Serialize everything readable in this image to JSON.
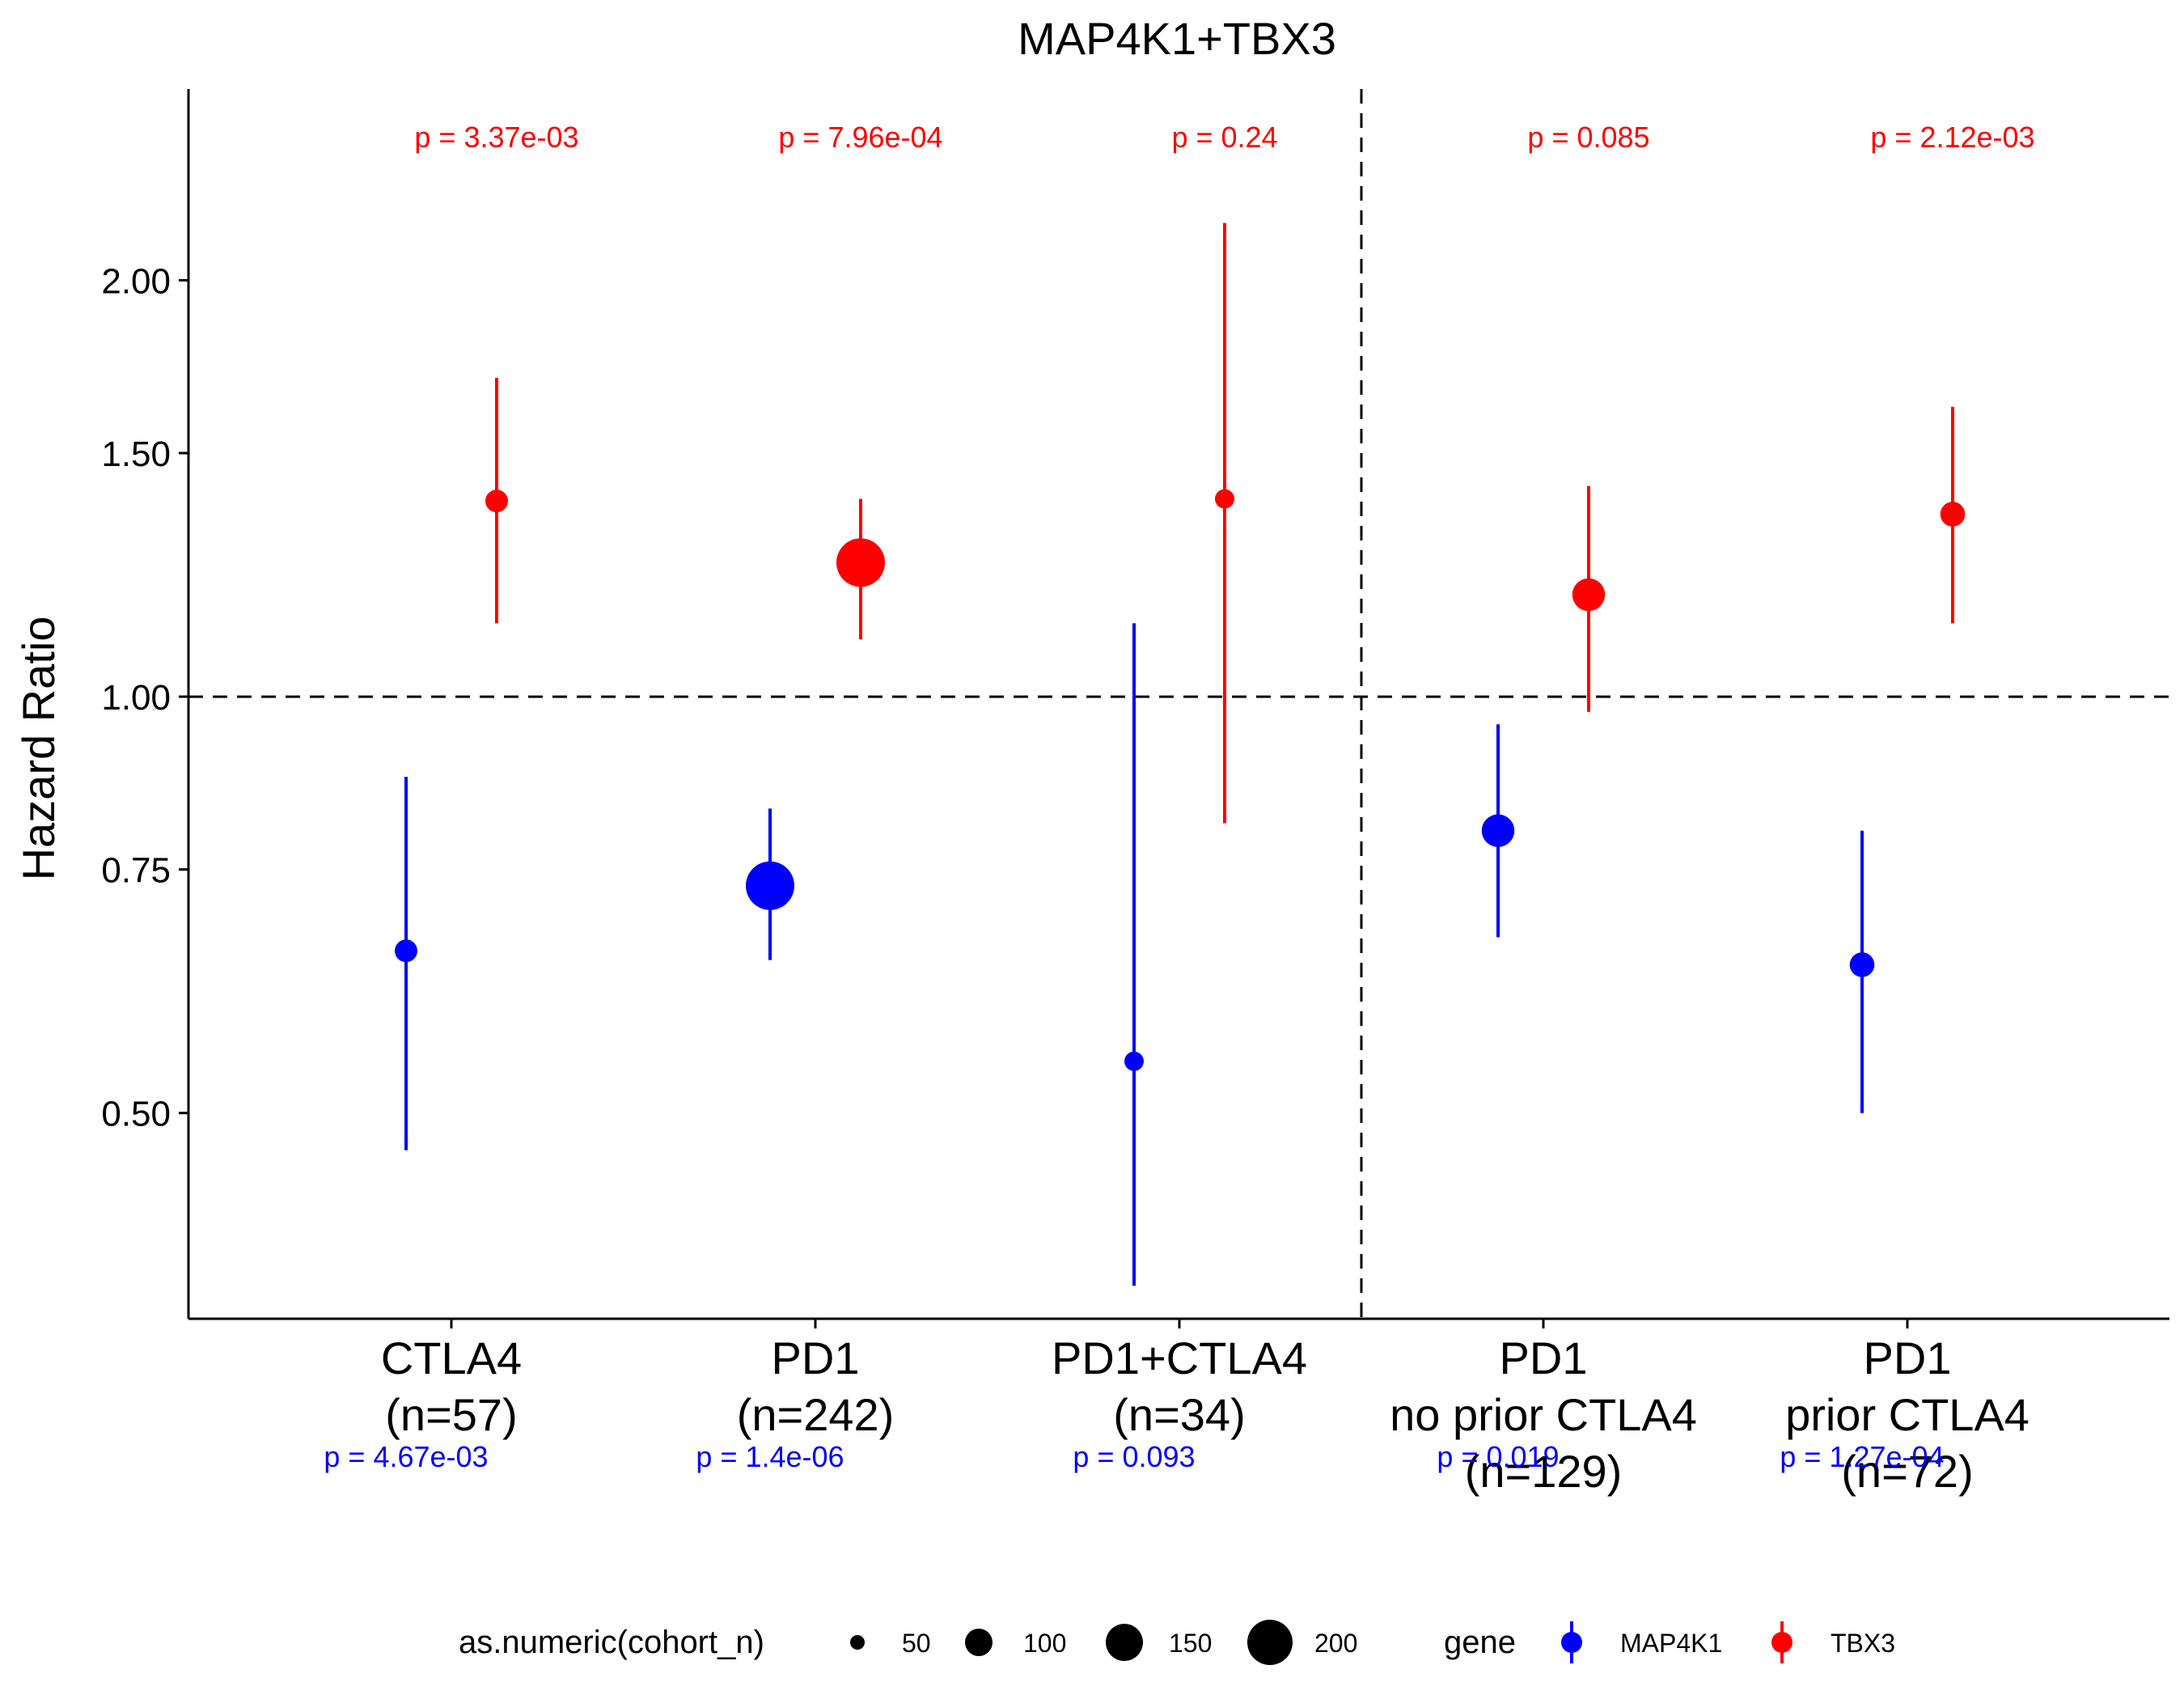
{
  "chart_data": {
    "type": "scatter",
    "title": "MAP4K1+TBX3",
    "ylabel": "Hazard Ratio",
    "xlabel": "",
    "y_scale": "log",
    "ylim": [
      0.355,
      2.75
    ],
    "y_ticks": [
      0.5,
      0.75,
      1.0,
      1.5,
      2.0
    ],
    "y_tick_labels": [
      "0.50",
      "0.75",
      "1.00",
      "1.50",
      "2.00"
    ],
    "reference_line_y": 1.0,
    "divider_after_category_index": 2,
    "grid": false,
    "categories": [
      [
        "CTLA4",
        "(n=57)"
      ],
      [
        "PD1",
        "(n=242)"
      ],
      [
        "PD1+CTLA4",
        "(n=34)"
      ],
      [
        "PD1",
        "no prior CTLA4",
        "(n=129)"
      ],
      [
        "PD1",
        "prior CTLA4",
        "(n=72)"
      ]
    ],
    "cohort_n": [
      57,
      242,
      34,
      129,
      72
    ],
    "series": [
      {
        "name": "MAP4K1",
        "color": "#0000ff",
        "hr": [
          0.655,
          0.73,
          0.545,
          0.8,
          0.64
        ],
        "lower": [
          0.47,
          0.645,
          0.375,
          0.67,
          0.5
        ],
        "upper": [
          0.875,
          0.83,
          1.13,
          0.955,
          0.8
        ],
        "p_labels": [
          "p = 4.67e-03",
          "p = 1.4e-06",
          "p = 0.093",
          "p = 0.019",
          "p = 1.27e-04"
        ]
      },
      {
        "name": "TBX3",
        "color": "#ff0000",
        "hr": [
          1.385,
          1.25,
          1.39,
          1.185,
          1.355
        ],
        "lower": [
          1.13,
          1.1,
          0.81,
          0.975,
          1.13
        ],
        "upper": [
          1.7,
          1.39,
          2.2,
          1.42,
          1.62
        ],
        "p_labels": [
          "p = 3.37e-03",
          "p = 7.96e-04",
          "p = 0.24",
          "p = 0.085",
          "p = 2.12e-03"
        ]
      }
    ],
    "legend": {
      "position": "bottom",
      "size_title": "as.numeric(cohort_n)",
      "size_values": [
        50,
        100,
        150,
        200
      ],
      "size_labels": [
        "50",
        "100",
        "150",
        "200"
      ],
      "color_title": "gene",
      "color_items": [
        "MAP4K1",
        "TBX3"
      ]
    }
  }
}
